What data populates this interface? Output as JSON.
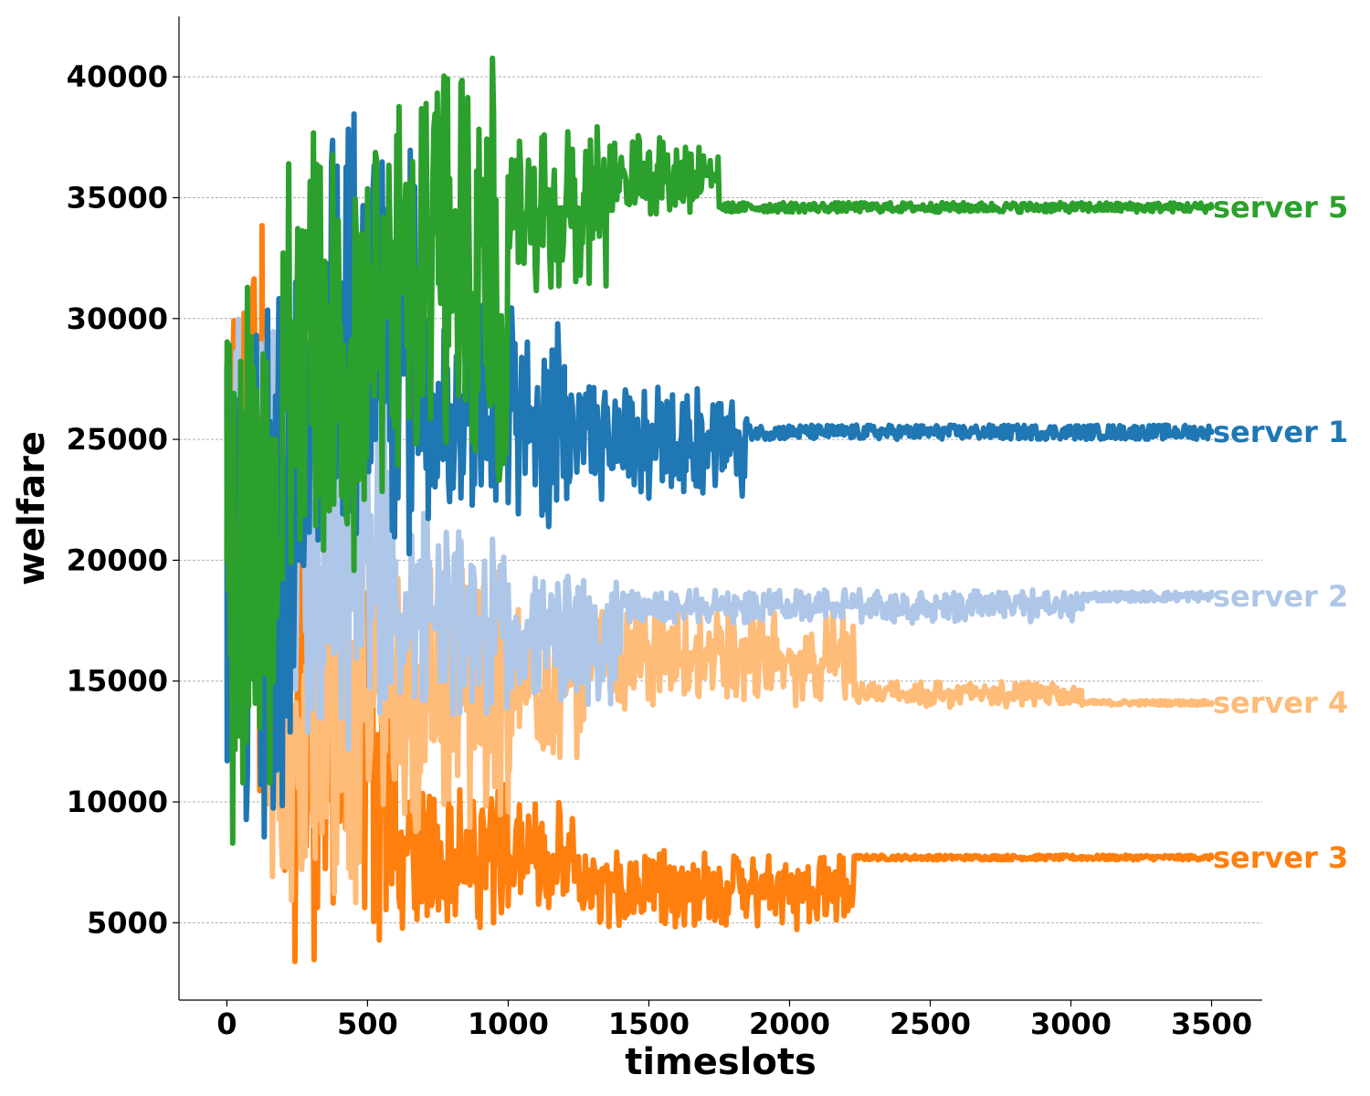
{
  "chart_data": {
    "type": "line",
    "title": "",
    "xlabel": "timeslots",
    "ylabel": "welfare",
    "xlim": [
      -170,
      3680
    ],
    "ylim": [
      1800,
      42500
    ],
    "xticks": [
      0,
      500,
      1000,
      1500,
      2000,
      2500,
      3000,
      3500
    ],
    "yticks": [
      5000,
      10000,
      15000,
      20000,
      25000,
      30000,
      35000,
      40000
    ],
    "grid": "horizontal-dashed",
    "legend": "inline labels at right end of each series",
    "series": [
      {
        "name": "server 3",
        "color": "#ff7f0e",
        "start": 26000,
        "end": 7700,
        "stable_from": 2230,
        "segments": [
          {
            "x0": 0,
            "x1": 150,
            "min": 9500,
            "max": 34200
          },
          {
            "x0": 150,
            "x1": 600,
            "min": 3100,
            "max": 23000
          },
          {
            "x0": 600,
            "x1": 1000,
            "min": 4700,
            "max": 10800
          },
          {
            "x0": 1000,
            "x1": 1250,
            "min": 5000,
            "max": 10100
          },
          {
            "x0": 1250,
            "x1": 2230,
            "min": 4700,
            "max": 8000
          },
          {
            "x0": 2230,
            "x1": 3500,
            "min": 7600,
            "max": 7800
          }
        ]
      },
      {
        "name": "server 4",
        "color": "#ffbb78",
        "start": 24000,
        "end": 14100,
        "stable_from": 3040,
        "segments": [
          {
            "x0": 0,
            "x1": 150,
            "min": 11000,
            "max": 33500
          },
          {
            "x0": 150,
            "x1": 500,
            "min": 4800,
            "max": 23000
          },
          {
            "x0": 500,
            "x1": 1000,
            "min": 8500,
            "max": 20000
          },
          {
            "x0": 1000,
            "x1": 1270,
            "min": 11000,
            "max": 18000
          },
          {
            "x0": 1270,
            "x1": 2230,
            "min": 13800,
            "max": 18200
          },
          {
            "x0": 2230,
            "x1": 3040,
            "min": 13900,
            "max": 15000
          },
          {
            "x0": 3040,
            "x1": 3500,
            "min": 14000,
            "max": 14200
          }
        ]
      },
      {
        "name": "server 2",
        "color": "#aec7e8",
        "start": 26000,
        "end": 18500,
        "stable_from": 3040,
        "segments": [
          {
            "x0": 0,
            "x1": 200,
            "min": 12000,
            "max": 32000
          },
          {
            "x0": 200,
            "x1": 600,
            "min": 12000,
            "max": 29000
          },
          {
            "x0": 600,
            "x1": 1000,
            "min": 13000,
            "max": 22000
          },
          {
            "x0": 1000,
            "x1": 1400,
            "min": 13500,
            "max": 19500
          },
          {
            "x0": 1400,
            "x1": 3040,
            "min": 17400,
            "max": 18800
          },
          {
            "x0": 3040,
            "x1": 3500,
            "min": 18300,
            "max": 18700
          }
        ]
      },
      {
        "name": "server 1",
        "color": "#1f77b4",
        "start": 28000,
        "end": 25300,
        "stable_from": 1850,
        "segments": [
          {
            "x0": 0,
            "x1": 300,
            "min": 8300,
            "max": 33500
          },
          {
            "x0": 300,
            "x1": 700,
            "min": 20000,
            "max": 38700
          },
          {
            "x0": 700,
            "x1": 1200,
            "min": 21000,
            "max": 31000
          },
          {
            "x0": 1200,
            "x1": 1850,
            "min": 22500,
            "max": 27500
          },
          {
            "x0": 1850,
            "x1": 3500,
            "min": 25000,
            "max": 25600
          }
        ]
      },
      {
        "name": "server 5",
        "color": "#2ca02c",
        "start": 20000,
        "end": 34600,
        "stable_from": 1750,
        "segments": [
          {
            "x0": 0,
            "x1": 200,
            "min": 7800,
            "max": 32000
          },
          {
            "x0": 200,
            "x1": 500,
            "min": 19000,
            "max": 39000
          },
          {
            "x0": 500,
            "x1": 1000,
            "min": 22000,
            "max": 40800
          },
          {
            "x0": 1000,
            "x1": 1350,
            "min": 31000,
            "max": 38000
          },
          {
            "x0": 1350,
            "x1": 1750,
            "min": 34200,
            "max": 37800
          },
          {
            "x0": 1750,
            "x1": 3500,
            "min": 34400,
            "max": 34800
          }
        ]
      }
    ]
  }
}
